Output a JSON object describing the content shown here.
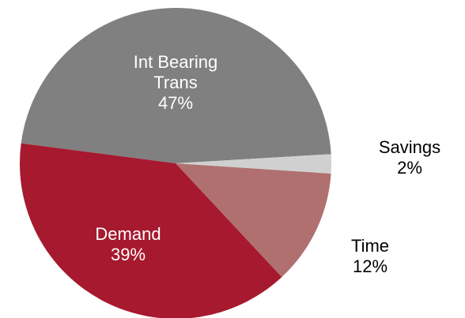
{
  "chart_data": {
    "type": "pie",
    "categories": [
      "Int Bearing Trans",
      "Savings",
      "Time",
      "Demand"
    ],
    "values": [
      47,
      2,
      12,
      39
    ],
    "value_labels": [
      "47%",
      "2%",
      "12%",
      "39%"
    ],
    "colors": [
      "#808080",
      "#d0d0d0",
      "#b07070",
      "#a6192e"
    ]
  }
}
